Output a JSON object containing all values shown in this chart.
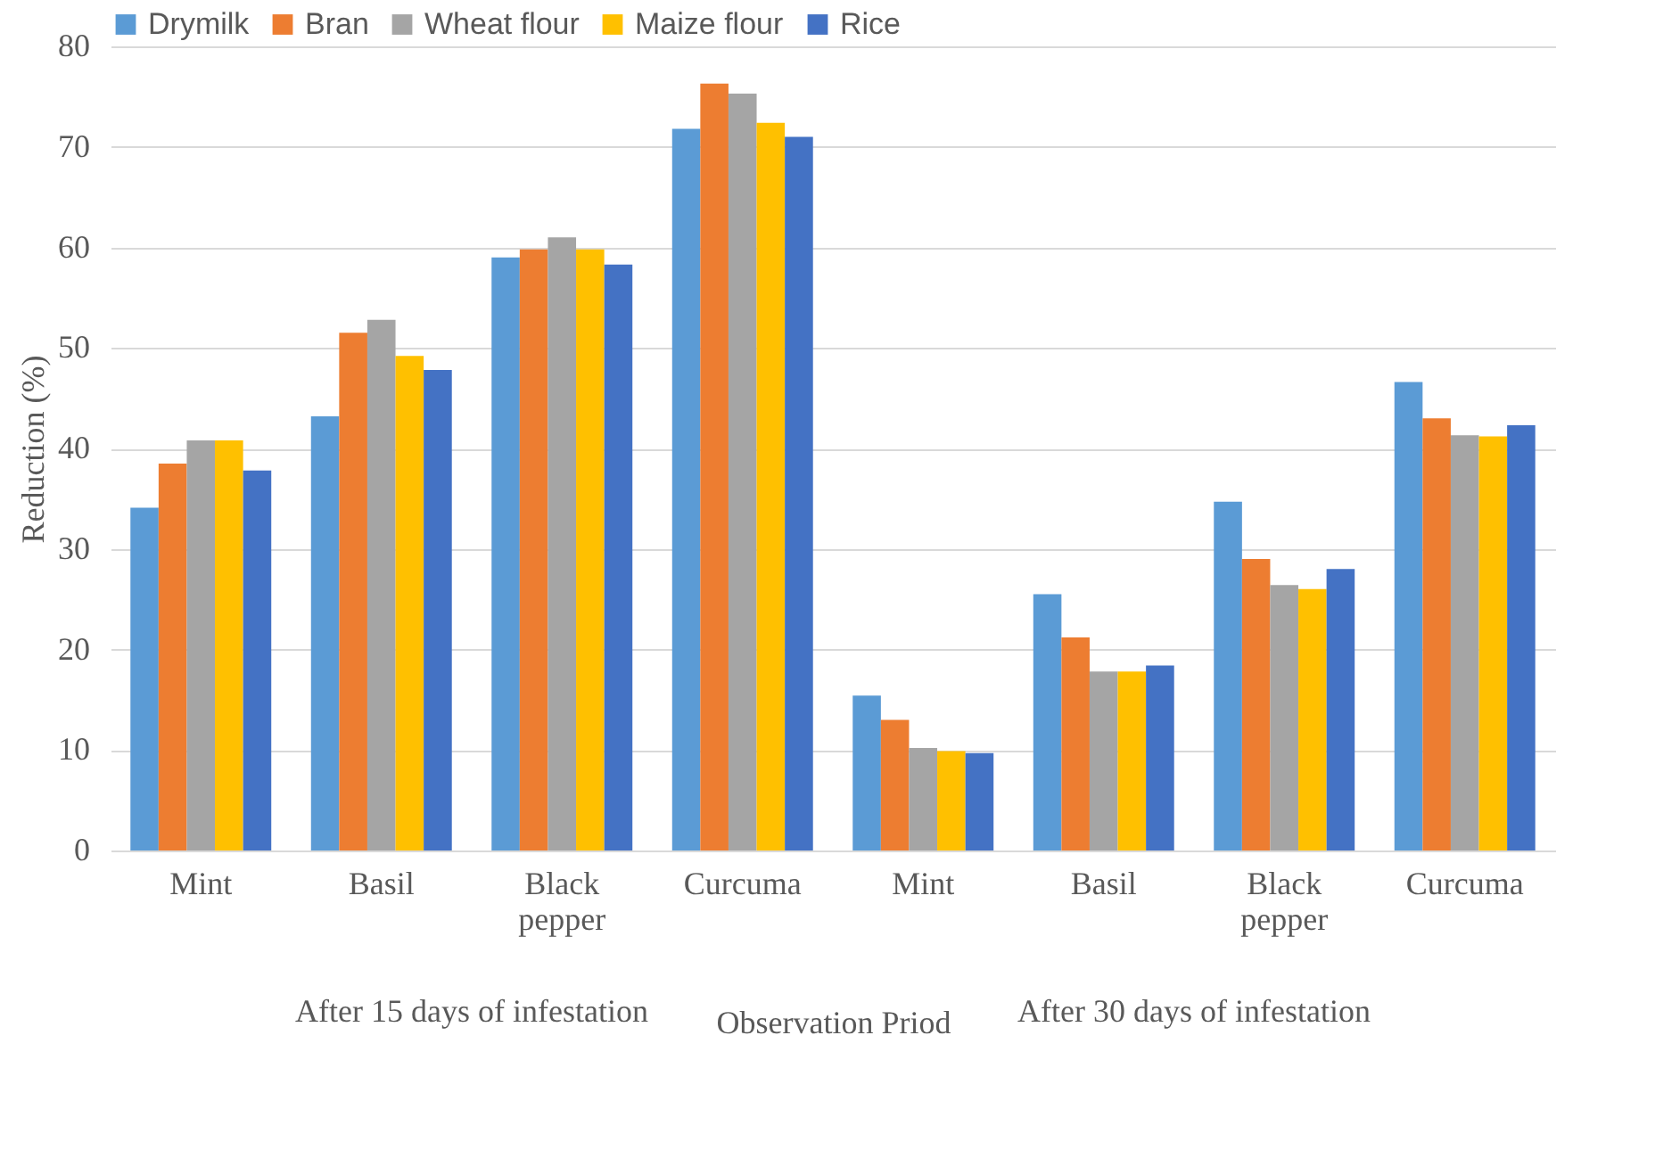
{
  "chart_data": {
    "type": "bar",
    "xlabel": "Observation Priod",
    "ylabel": "Reduction (%)",
    "categories": [
      "Mint",
      "Basil",
      "Black pepper",
      "Curcuma",
      "Mint",
      "Basil",
      "Black pepper",
      "Curcuma"
    ],
    "annotations": [
      "After 15 days of infestation",
      "After 30 days of infestation"
    ],
    "series": [
      {
        "name": "Drymilk",
        "color": "#5b9bd5",
        "values": [
          34.1,
          43.2,
          59,
          71.8,
          15.4,
          25.5,
          34.7,
          46.6
        ]
      },
      {
        "name": "Bran",
        "color": "#ed7d31",
        "values": [
          38.5,
          51.5,
          59.8,
          76.3,
          13,
          21.2,
          29,
          43
        ]
      },
      {
        "name": "Wheat flour",
        "color": "#a5a5a5",
        "values": [
          40.8,
          52.8,
          61,
          75.3,
          10.2,
          17.8,
          26.4,
          41.3
        ]
      },
      {
        "name": "Maize flour",
        "color": "#ffc000",
        "values": [
          40.8,
          49.2,
          59.8,
          72.4,
          9.9,
          17.8,
          26,
          41.2
        ]
      },
      {
        "name": "Rice",
        "color": "#4472c4",
        "values": [
          37.8,
          47.8,
          58.3,
          71,
          9.7,
          18.4,
          28,
          42.3
        ]
      }
    ],
    "ylim": [
      0,
      80
    ],
    "yticks": [
      0,
      10,
      20,
      30,
      40,
      50,
      60,
      70,
      80
    ],
    "grid": "y",
    "legend": "top"
  }
}
